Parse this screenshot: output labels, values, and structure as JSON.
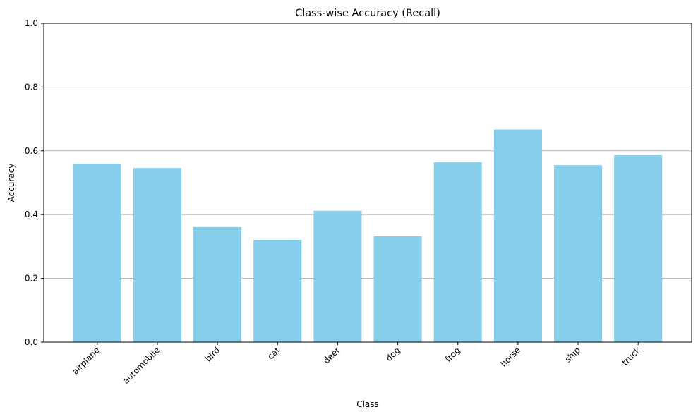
{
  "chart_data": {
    "type": "bar",
    "title": "Class-wise Accuracy (Recall)",
    "xlabel": "Class",
    "ylabel": "Accuracy",
    "categories": [
      "airplane",
      "automobile",
      "bird",
      "cat",
      "deer",
      "dog",
      "frog",
      "horse",
      "ship",
      "truck"
    ],
    "values": [
      0.56,
      0.546,
      0.361,
      0.321,
      0.412,
      0.332,
      0.564,
      0.667,
      0.555,
      0.586
    ],
    "ylim": [
      0,
      1.0
    ],
    "yticks": [
      "0.0",
      "0.2",
      "0.4",
      "0.6",
      "0.8",
      "1.0"
    ],
    "grid": "y-axis",
    "legend": "none",
    "colors": {
      "bar": "#87ceeb",
      "grid": "#b0b0b0",
      "axis": "#000000"
    }
  }
}
